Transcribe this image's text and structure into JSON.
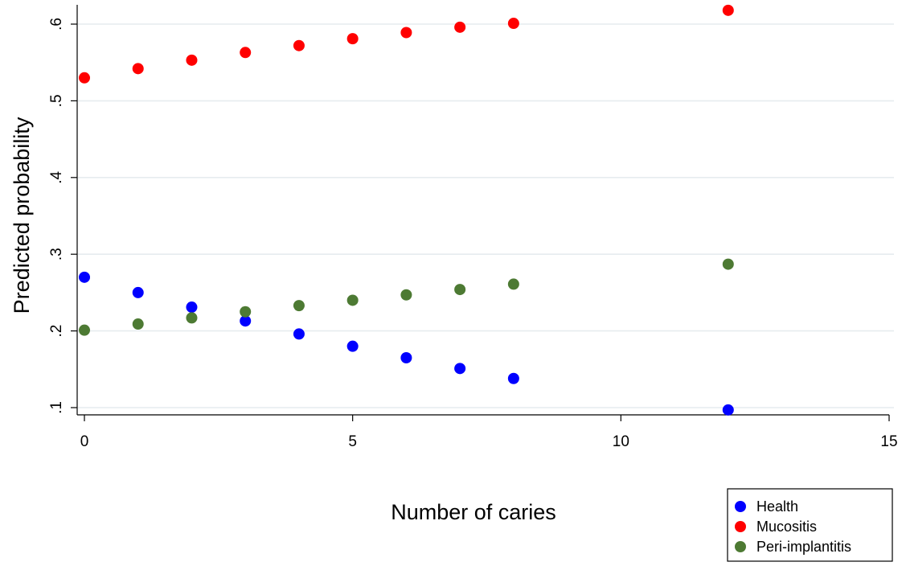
{
  "chart_data": {
    "type": "scatter",
    "title": "",
    "xlabel": "Number of caries",
    "ylabel": "Predicted probability",
    "xlim": [
      0,
      15
    ],
    "ylim": [
      0.1,
      0.62
    ],
    "x_ticks": [
      0,
      5,
      10,
      15
    ],
    "x_tick_labels": [
      "0",
      "5",
      "10",
      "15"
    ],
    "y_ticks": [
      0.1,
      0.2,
      0.3,
      0.4,
      0.5,
      0.6
    ],
    "y_tick_labels": [
      ".1",
      ".2",
      ".3",
      ".4",
      ".5",
      ".6"
    ],
    "grid": "horizontal",
    "legend_position": "bottom-right",
    "series": [
      {
        "name": "Health",
        "color": "#0000ff",
        "x": [
          0,
          1,
          2,
          3,
          4,
          5,
          6,
          7,
          8,
          12
        ],
        "y": [
          0.27,
          0.25,
          0.231,
          0.213,
          0.196,
          0.18,
          0.165,
          0.151,
          0.138,
          0.097
        ]
      },
      {
        "name": "Mucositis",
        "color": "#ff0000",
        "x": [
          0,
          1,
          2,
          3,
          4,
          5,
          6,
          7,
          8,
          12
        ],
        "y": [
          0.53,
          0.542,
          0.553,
          0.563,
          0.572,
          0.581,
          0.589,
          0.596,
          0.601,
          0.618
        ]
      },
      {
        "name": "Peri-implantitis",
        "color": "#4d7a33",
        "x": [
          0,
          1,
          2,
          3,
          4,
          5,
          6,
          7,
          8,
          12
        ],
        "y": [
          0.201,
          0.209,
          0.217,
          0.225,
          0.233,
          0.24,
          0.247,
          0.254,
          0.261,
          0.287
        ]
      }
    ]
  }
}
